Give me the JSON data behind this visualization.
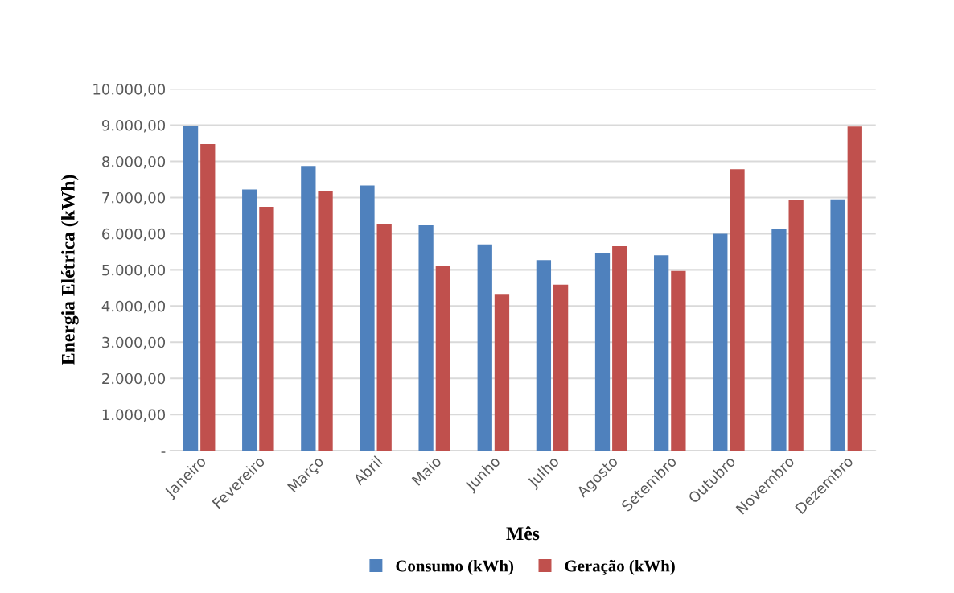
{
  "chart_data": {
    "type": "bar",
    "xlabel": "Mês",
    "ylabel": "Energia Elétrica (kWh)",
    "categories": [
      "Janeiro",
      "Fevereiro",
      "Março",
      "Abril",
      "Maio",
      "Junho",
      "Julho",
      "Agosto",
      "Setembro",
      "Outubro",
      "Novembro",
      "Dezembro"
    ],
    "series": [
      {
        "name": "Consumo (kWh)",
        "color": "#4f81bd",
        "values": [
          8980,
          7220,
          7870,
          7330,
          6230,
          5700,
          5270,
          5450,
          5400,
          6000,
          6130,
          6950
        ]
      },
      {
        "name": "Geração (kWh)",
        "color": "#c0504d",
        "values": [
          8480,
          6740,
          7180,
          6260,
          5110,
          4310,
          4590,
          5650,
          4970,
          7780,
          6930,
          8960
        ]
      }
    ],
    "ylim": [
      0,
      10000
    ],
    "yticks": [
      {
        "value": 0,
        "label": "-"
      },
      {
        "value": 1000,
        "label": "1.000,00"
      },
      {
        "value": 2000,
        "label": "2.000,00"
      },
      {
        "value": 3000,
        "label": "3.000,00"
      },
      {
        "value": 4000,
        "label": "4.000,00"
      },
      {
        "value": 5000,
        "label": "5.000,00"
      },
      {
        "value": 6000,
        "label": "6.000,00"
      },
      {
        "value": 7000,
        "label": "7.000,00"
      },
      {
        "value": 8000,
        "label": "8.000,00"
      },
      {
        "value": 9000,
        "label": "9.000,00"
      },
      {
        "value": 10000,
        "label": "10.000,00"
      }
    ],
    "grid": "y",
    "legend": "bottom"
  }
}
